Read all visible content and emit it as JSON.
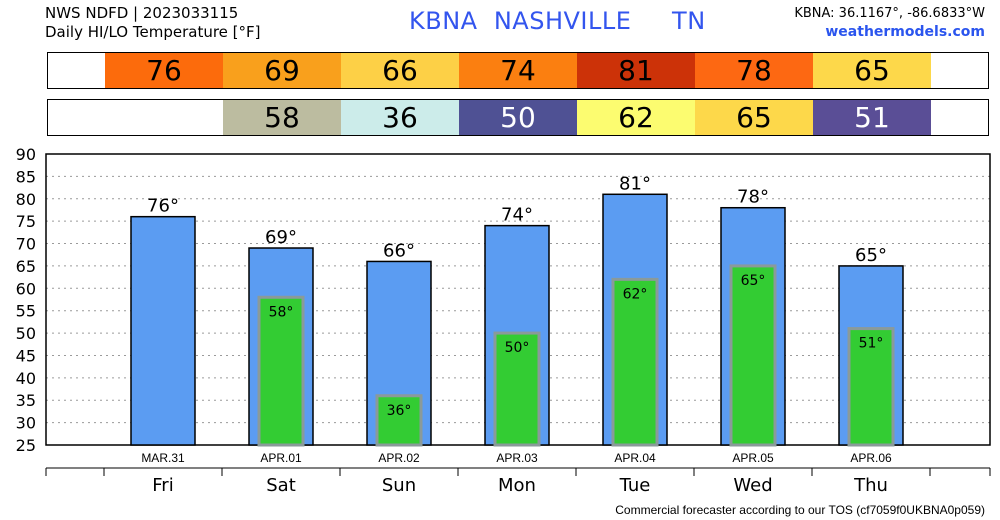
{
  "header": {
    "line1": "NWS NDFD | 2023033115",
    "line2": "Daily HI/LO Temperature [°F]",
    "station": "KBNA  NASHVILLE     TN",
    "coords": "KBNA: 36.1167°, -86.6833°W",
    "site": "weathermodels.com"
  },
  "footer": "Commercial forecaster according to our TOS (cf7059f0UKBNA0p059)",
  "hi_strip": [
    {
      "label": "76",
      "color": "#fc6b0c"
    },
    {
      "label": "69",
      "color": "#f9a01c"
    },
    {
      "label": "66",
      "color": "#fdd046"
    },
    {
      "label": "74",
      "color": "#fb7f10"
    },
    {
      "label": "81",
      "color": "#cc3208"
    },
    {
      "label": "78",
      "color": "#fd6812"
    },
    {
      "label": "65",
      "color": "#fdd84a"
    }
  ],
  "lo_strip": [
    {
      "label": "",
      "color": "#ffffff"
    },
    {
      "label": "58",
      "color": "#bcbca0"
    },
    {
      "label": "36",
      "color": "#ccecea"
    },
    {
      "label": "50",
      "color": "#4f5194"
    },
    {
      "label": "62",
      "color": "#fcfc70"
    },
    {
      "label": "65",
      "color": "#fdd84a"
    },
    {
      "label": "51",
      "color": "#5a4e96"
    }
  ],
  "lo_text_dark_indices": [
    1,
    2,
    4,
    5
  ],
  "chart_data": {
    "type": "bar",
    "categories": [
      "Fri",
      "Sat",
      "Sun",
      "Mon",
      "Tue",
      "Wed",
      "Thu"
    ],
    "dates": [
      "MAR.31",
      "APR.01",
      "APR.02",
      "APR.03",
      "APR.04",
      "APR.05",
      "APR.06"
    ],
    "series": [
      {
        "values": [
          76,
          69,
          66,
          74,
          81,
          78,
          65
        ],
        "labels": [
          "76°",
          "69°",
          "66°",
          "74°",
          "81°",
          "78°",
          "65°"
        ],
        "color": "#5b9cf2"
      },
      {
        "values": [
          null,
          58,
          36,
          50,
          62,
          65,
          51
        ],
        "labels": [
          "",
          "58°",
          "36°",
          "50°",
          "62°",
          "65°",
          "51°"
        ],
        "color": "#33cc33"
      }
    ],
    "ylim": [
      25,
      90
    ],
    "yticks": [
      "25",
      "30",
      "35",
      "40",
      "45",
      "50",
      "55",
      "60",
      "65",
      "70",
      "75",
      "80",
      "85",
      "90"
    ],
    "grid": true
  }
}
